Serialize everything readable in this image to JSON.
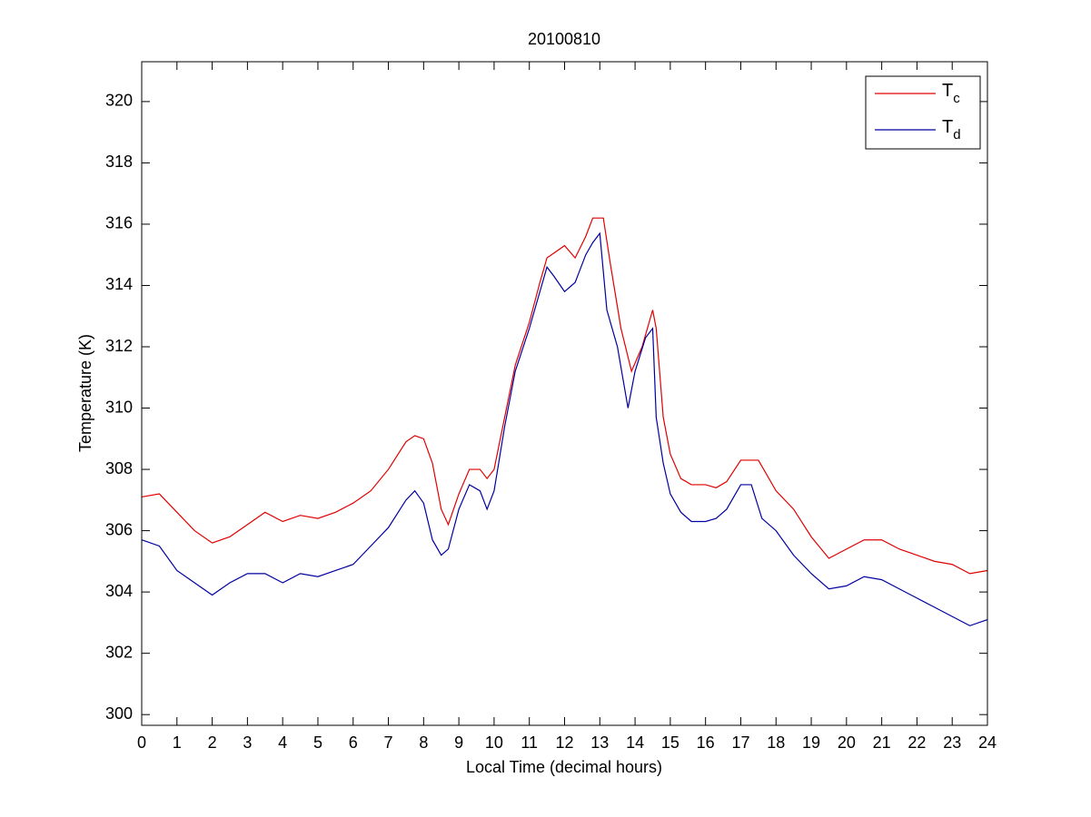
{
  "chart_data": {
    "type": "line",
    "title": "20100810",
    "x_label": "Local Time (decimal hours)",
    "y_label": "Temperature (K)",
    "xlim": [
      0,
      24
    ],
    "ylim": [
      299.65,
      321.3
    ],
    "xticks": [
      0,
      1,
      2,
      3,
      4,
      5,
      6,
      7,
      8,
      9,
      10,
      11,
      12,
      13,
      14,
      15,
      16,
      17,
      18,
      19,
      20,
      21,
      22,
      23,
      24
    ],
    "yticks": [
      300,
      302,
      304,
      306,
      308,
      310,
      312,
      314,
      316,
      318,
      320
    ],
    "grid": false,
    "legend_position": "northeast",
    "series": [
      {
        "name": "Tc",
        "color": "#e00000",
        "x": [
          0,
          0.5,
          1,
          1.5,
          2,
          2.5,
          3,
          3.5,
          4,
          4.5,
          5,
          5.5,
          6,
          6.5,
          7,
          7.5,
          7.75,
          8,
          8.25,
          8.5,
          8.7,
          9,
          9.3,
          9.6,
          9.8,
          10,
          10.3,
          10.6,
          11,
          11.3,
          11.5,
          12,
          12.3,
          12.6,
          12.8,
          13.1,
          13.3,
          13.6,
          13.9,
          14.2,
          14.5,
          14.6,
          14.8,
          15,
          15.3,
          15.6,
          16,
          16.3,
          16.6,
          17,
          17.5,
          18,
          18.5,
          19,
          19.5,
          20,
          20.5,
          21,
          21.5,
          22,
          22.5,
          23,
          23.5,
          24
        ],
        "values": [
          307.1,
          307.2,
          306.6,
          306.0,
          305.6,
          305.8,
          306.2,
          306.6,
          306.3,
          306.5,
          306.4,
          306.6,
          306.9,
          307.3,
          308.0,
          308.9,
          309.1,
          309.0,
          308.2,
          306.7,
          306.2,
          307.2,
          308.0,
          308.0,
          307.7,
          308.0,
          309.7,
          311.4,
          312.8,
          314.1,
          314.9,
          315.3,
          314.9,
          315.6,
          316.2,
          316.2,
          314.7,
          312.6,
          311.2,
          312.0,
          313.2,
          312.6,
          309.7,
          308.5,
          307.7,
          307.5,
          307.5,
          307.4,
          307.6,
          308.3,
          308.3,
          307.3,
          306.7,
          305.8,
          305.1,
          305.4,
          305.7,
          305.7,
          305.4,
          305.2,
          305.0,
          304.9,
          304.6,
          304.7
        ]
      },
      {
        "name": "Td",
        "color": "#0000a0",
        "x": [
          0,
          0.5,
          1,
          1.5,
          2,
          2.5,
          3,
          3.5,
          4,
          4.5,
          5,
          5.5,
          6,
          6.5,
          7,
          7.5,
          7.75,
          8,
          8.25,
          8.5,
          8.7,
          9,
          9.3,
          9.6,
          9.8,
          10,
          10.3,
          10.6,
          11,
          11.3,
          11.5,
          11.7,
          12,
          12.3,
          12.6,
          12.8,
          13.0,
          13.2,
          13.5,
          13.8,
          14.0,
          14.3,
          14.5,
          14.6,
          14.8,
          15,
          15.3,
          15.6,
          16,
          16.3,
          16.6,
          17,
          17.3,
          17.6,
          18,
          18.5,
          19,
          19.5,
          20,
          20.5,
          21,
          21.5,
          22,
          22.5,
          23,
          23.5,
          24
        ],
        "values": [
          305.7,
          305.5,
          304.7,
          304.3,
          303.9,
          304.3,
          304.6,
          304.6,
          304.3,
          304.6,
          304.5,
          304.7,
          304.9,
          305.5,
          306.1,
          307.0,
          307.3,
          306.9,
          305.7,
          305.2,
          305.4,
          306.7,
          307.5,
          307.3,
          306.7,
          307.3,
          309.4,
          311.2,
          312.6,
          313.8,
          314.6,
          314.3,
          313.8,
          314.1,
          315.0,
          315.4,
          315.7,
          313.2,
          312.0,
          310.0,
          311.2,
          312.3,
          312.6,
          309.7,
          308.2,
          307.2,
          306.6,
          306.3,
          306.3,
          306.4,
          306.7,
          307.5,
          307.5,
          306.4,
          306.0,
          305.2,
          304.6,
          304.1,
          304.2,
          304.5,
          304.4,
          304.1,
          303.8,
          303.5,
          303.2,
          302.9,
          303.1
        ]
      }
    ]
  }
}
